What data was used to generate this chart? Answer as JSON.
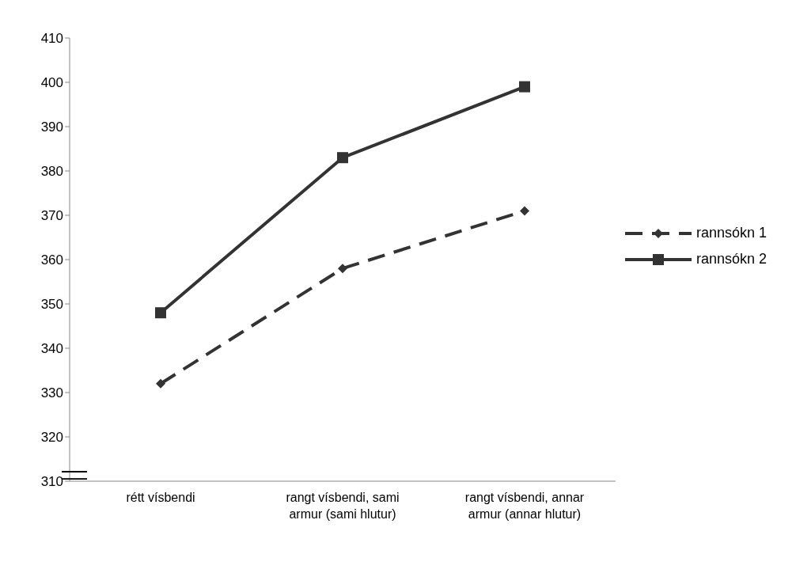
{
  "chart_data": {
    "type": "line",
    "categories": [
      "rétt vísbendi",
      "rangt vísbendi, sami armur (sami hlutur)",
      "rangt vísbendi, annar armur (annar hlutur)"
    ],
    "series": [
      {
        "name": "rannsókn 1",
        "color": "#333333",
        "values": [
          332,
          358,
          371
        ],
        "marker": "diamond",
        "line_style": "dashed"
      },
      {
        "name": "rannsókn 2",
        "color": "#333333",
        "values": [
          348,
          383,
          399
        ],
        "marker": "square",
        "line_style": "solid"
      }
    ],
    "ylim": [
      310,
      410
    ],
    "yticks": [
      310,
      320,
      330,
      340,
      350,
      360,
      370,
      380,
      390,
      400,
      410
    ],
    "grid": false,
    "legend": "right"
  }
}
